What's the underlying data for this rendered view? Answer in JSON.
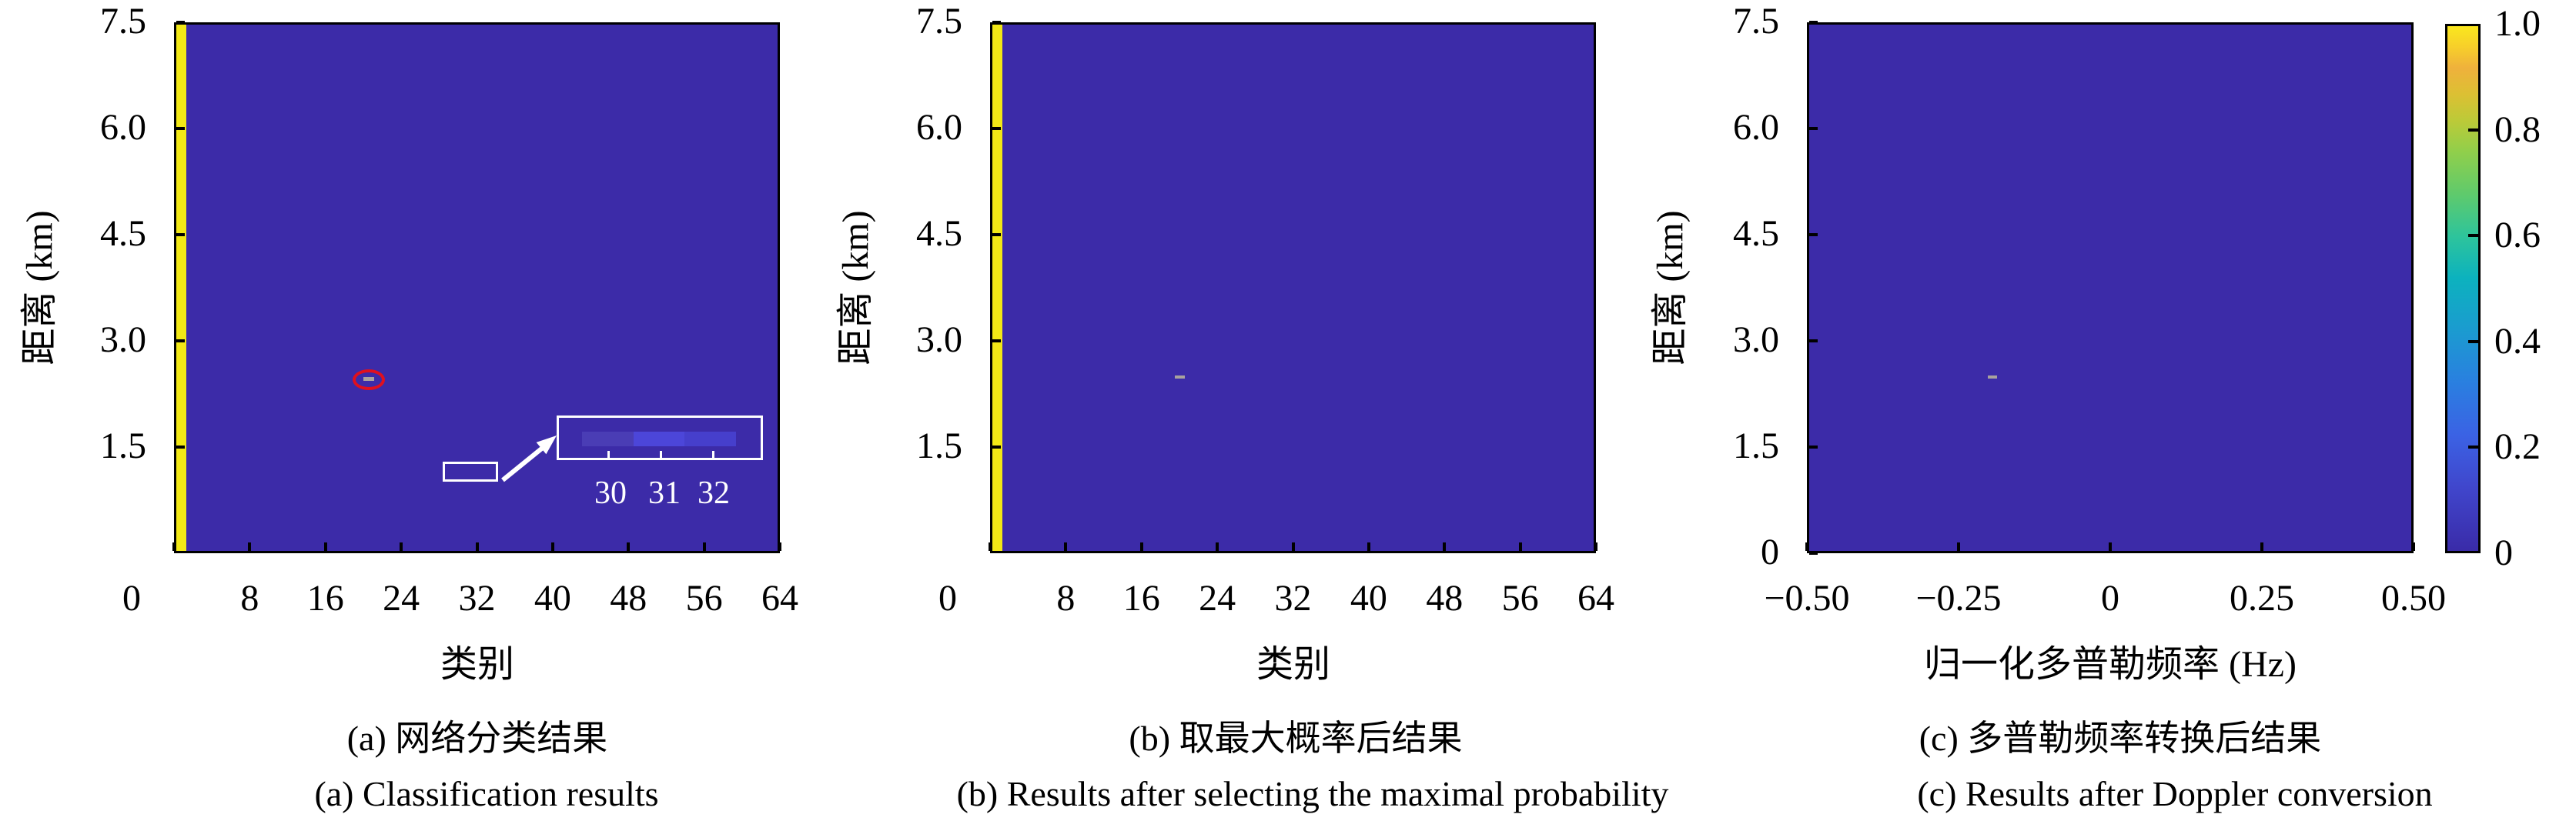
{
  "colors": {
    "background": "#FFFFFF",
    "heat_background": "#3C2BA8",
    "saturated_yellow": "#F2E816",
    "target_marker_gray": "#A9A29E",
    "annotation_red": "#E0101E",
    "annotation_white": "#FFFFFF",
    "text": "#000000"
  },
  "colorbar": {
    "tick_labels": [
      "1.0",
      "0.8",
      "0.6",
      "0.4",
      "0.2",
      "0"
    ],
    "tick_values": [
      1.0,
      0.8,
      0.6,
      0.4,
      0.2,
      0
    ],
    "inner_tick_values": [
      0.8,
      0.6,
      0.4,
      0.2
    ],
    "colormap": "parula"
  },
  "panels": {
    "a": {
      "xlabel": "类别",
      "ylabel": "距离 (km)",
      "x_tick_labels": [
        "0",
        "8",
        "16",
        "24",
        "32",
        "40",
        "48",
        "56",
        "64"
      ],
      "x_tick_values": [
        0,
        8,
        16,
        24,
        32,
        40,
        48,
        56,
        64
      ],
      "y_tick_labels": [
        "1.5",
        "3.0",
        "4.5",
        "6.0",
        "7.5"
      ],
      "y_tick_values": [
        1.5,
        3.0,
        4.5,
        6.0,
        7.5
      ],
      "caption_zh": "(a) 网络分类结果",
      "caption_en": "(a) Classification results",
      "inset": {
        "labels": [
          "30",
          "31",
          "32"
        ]
      }
    },
    "b": {
      "xlabel": "类别",
      "ylabel": "距离 (km)",
      "x_tick_labels": [
        "0",
        "8",
        "16",
        "24",
        "32",
        "40",
        "48",
        "56",
        "64"
      ],
      "x_tick_values": [
        0,
        8,
        16,
        24,
        32,
        40,
        48,
        56,
        64
      ],
      "y_tick_labels": [
        "1.5",
        "3.0",
        "4.5",
        "6.0",
        "7.5"
      ],
      "y_tick_values": [
        1.5,
        3.0,
        4.5,
        6.0,
        7.5
      ],
      "caption_zh": "(b) 取最大概率后结果",
      "caption_en": "(b) Results after selecting the maximal probability"
    },
    "c": {
      "xlabel": "归一化多普勒频率 (Hz)",
      "ylabel": "距离 (km)",
      "x_tick_labels": [
        "−0.50",
        "−0.25",
        "0",
        "0.25",
        "0.50"
      ],
      "x_tick_values": [
        -0.5,
        -0.25,
        0,
        0.25,
        0.5
      ],
      "y_tick_labels": [
        "0",
        "1.5",
        "3.0",
        "4.5",
        "6.0",
        "7.5"
      ],
      "y_tick_values": [
        0,
        1.5,
        3.0,
        4.5,
        6.0,
        7.5
      ],
      "caption_zh": "(c) 多普勒频率转换后结果",
      "caption_en": "(c) Results after Doppler conversion"
    }
  },
  "chart_data": [
    {
      "type": "heatmap",
      "panel": "a",
      "title": "(a) 网络分类结果 / (a) Classification results",
      "xlabel": "类别",
      "ylabel": "距离 (km)",
      "xlim": [
        0,
        64
      ],
      "ylim": [
        0,
        7.5
      ],
      "clim": [
        0,
        1
      ],
      "colormap": "parula",
      "x_ticks": [
        0,
        8,
        16,
        24,
        32,
        40,
        48,
        56,
        64
      ],
      "y_ticks": [
        1.5,
        3.0,
        4.5,
        6.0,
        7.5
      ],
      "background_value": 0,
      "features": [
        {
          "region": "class 0 column, all ranges",
          "value": 1.0,
          "appearance": "saturated yellow column at left edge"
        },
        {
          "region": "class ≈ 20, range ≈ 2.5 km",
          "appearance": "small gray target mark circled by red ellipse"
        },
        {
          "region": "classes 30–32, range ≈ 1.2 km",
          "value": "≈0.05–0.2",
          "appearance": "faint lighter-blue cells, boxed in white and magnified in inset labeled 30 31 32"
        }
      ],
      "legend_position": "shared colorbar at far right, range 0–1"
    },
    {
      "type": "heatmap",
      "panel": "b",
      "title": "(b) 取最大概率后结果 / (b) Results after selecting the maximal probability",
      "xlabel": "类别",
      "ylabel": "距离 (km)",
      "xlim": [
        0,
        64
      ],
      "ylim": [
        0,
        7.5
      ],
      "clim": [
        0,
        1
      ],
      "colormap": "parula",
      "x_ticks": [
        0,
        8,
        16,
        24,
        32,
        40,
        48,
        56,
        64
      ],
      "y_ticks": [
        1.5,
        3.0,
        4.5,
        6.0,
        7.5
      ],
      "background_value": 0,
      "features": [
        {
          "region": "class 0 column, all ranges",
          "value": 1.0,
          "appearance": "saturated yellow column at left edge"
        },
        {
          "region": "class ≈ 20, range ≈ 2.5 km",
          "appearance": "small gray target mark"
        }
      ]
    },
    {
      "type": "heatmap",
      "panel": "c",
      "title": "(c) 多普勒频率转换后结果 / (c) Results after Doppler conversion",
      "xlabel": "归一化多普勒频率 (Hz)",
      "ylabel": "距离 (km)",
      "xlim": [
        -0.5,
        0.5
      ],
      "ylim": [
        0,
        7.5
      ],
      "clim": [
        0,
        1
      ],
      "colormap": "parula",
      "x_ticks": [
        -0.5,
        -0.25,
        0,
        0.25,
        0.5
      ],
      "y_ticks": [
        0,
        1.5,
        3.0,
        4.5,
        6.0,
        7.5
      ],
      "background_value": 0,
      "features": [
        {
          "region": "normalized Doppler ≈ −0.2 Hz, range ≈ 2.5 km",
          "appearance": "small gray target mark"
        }
      ]
    }
  ]
}
